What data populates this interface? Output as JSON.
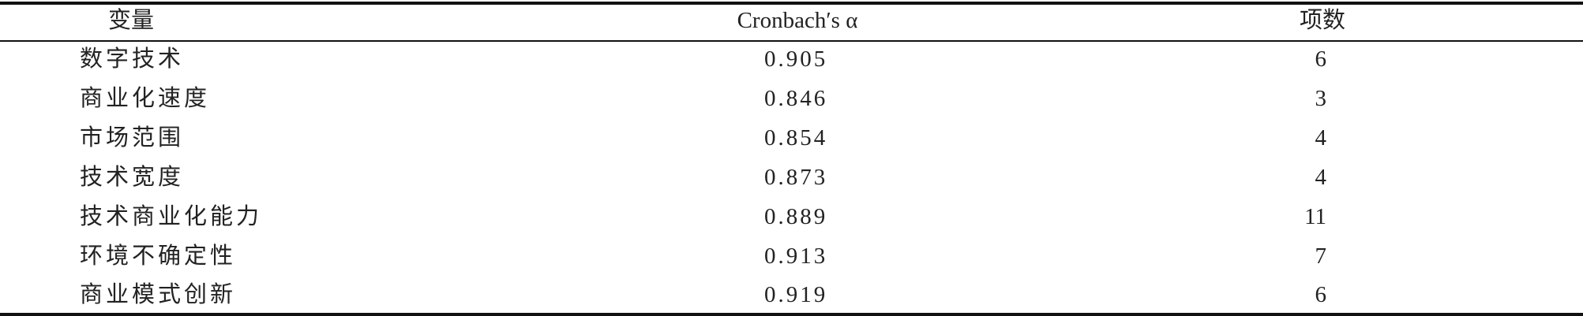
{
  "table": {
    "headers": [
      "变量",
      "Cronbach′s α",
      "项数"
    ],
    "rows": [
      [
        "数字技术",
        "0.905",
        "6"
      ],
      [
        "商业化速度",
        "0.846",
        "3"
      ],
      [
        "市场范围",
        "0.854",
        "4"
      ],
      [
        "技术宽度",
        "0.873",
        "4"
      ],
      [
        "技术商业化能力",
        "0.889",
        "11"
      ],
      [
        "环境不确定性",
        "0.913",
        "7"
      ],
      [
        "商业模式创新",
        "0.919",
        "6"
      ]
    ]
  }
}
